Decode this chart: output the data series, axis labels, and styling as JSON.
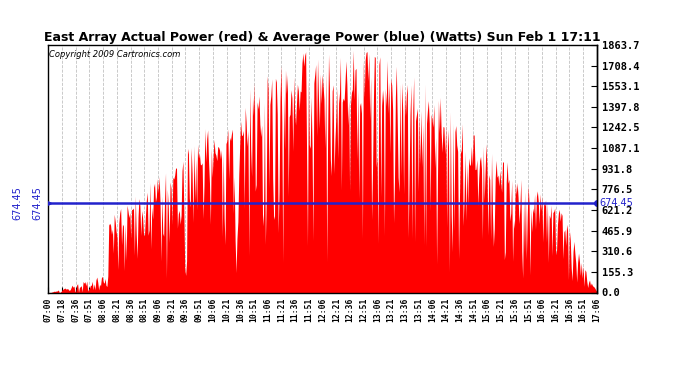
{
  "title": "East Array Actual Power (red) & Average Power (blue) (Watts) Sun Feb 1 17:11",
  "copyright": "Copyright 2009 Cartronics.com",
  "avg_power": 674.45,
  "ymax": 1863.7,
  "ymin": 0.0,
  "yticks": [
    0.0,
    155.3,
    310.6,
    465.9,
    621.2,
    776.5,
    931.8,
    1087.1,
    1242.5,
    1397.8,
    1553.1,
    1708.4,
    1863.7
  ],
  "bar_color": "#FF0000",
  "line_color": "#2222CC",
  "background_color": "#FFFFFF",
  "plot_bg_color": "#FFFFFF",
  "grid_color": "#BBBBBB",
  "time_labels": [
    "07:00",
    "07:18",
    "07:36",
    "07:51",
    "08:06",
    "08:21",
    "08:36",
    "08:51",
    "09:06",
    "09:21",
    "09:36",
    "09:51",
    "10:06",
    "10:21",
    "10:36",
    "10:51",
    "11:06",
    "11:21",
    "11:36",
    "11:51",
    "12:06",
    "12:21",
    "12:36",
    "12:51",
    "13:06",
    "13:21",
    "13:36",
    "13:51",
    "14:06",
    "14:21",
    "14:36",
    "14:51",
    "15:06",
    "15:21",
    "15:36",
    "15:51",
    "16:06",
    "16:21",
    "16:36",
    "16:51",
    "17:06"
  ],
  "seed": 12345
}
